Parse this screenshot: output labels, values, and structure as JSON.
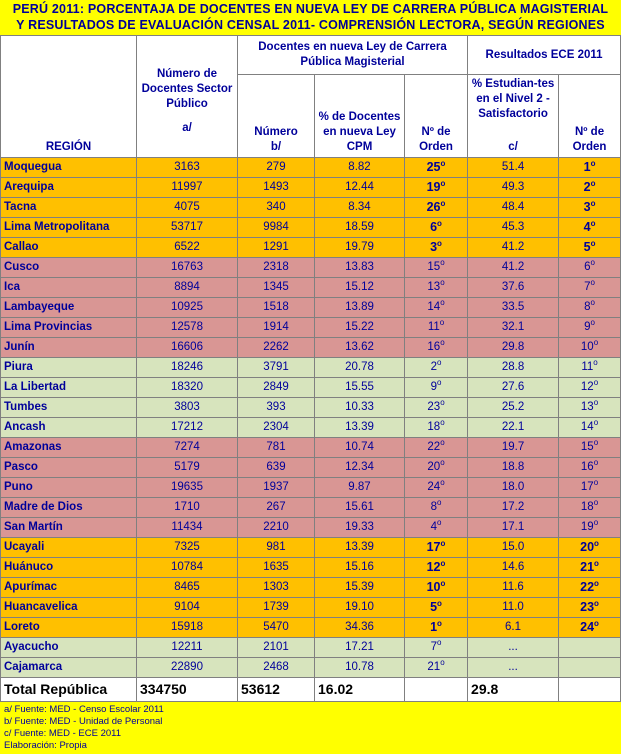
{
  "title": {
    "line1": "PERÚ 2011: PORCENTAJA DE DOCENTES EN NUEVA LEY DE CARRERA PÚBLICA MAGISTERIAL",
    "line2": "Y RESULTADOS DE EVALUACIÓN CENSAL 2011- COMPRENSIÓN LECTORA, SEGÚN REGIONES"
  },
  "headers": {
    "region": "REGIÓN",
    "num_docentes": "Número de Docentes Sector Público",
    "num_docentes_note": "a/",
    "group_clpm": "Docentes en nueva Ley de Carrera Pública Magisterial",
    "numero": "Número",
    "numero_note": "b/",
    "pct_docentes": "% de Docentes en nueva Ley CPM",
    "orden1": "Nº de Orden",
    "group_ece": "Resultados ECE 2011",
    "pct_estudiantes": "% Estudian-tes en el Nivel 2 - Satisfactorio",
    "pct_estudiantes_note": "c/",
    "orden2": "Nº de Orden"
  },
  "rows": [
    {
      "region": "Moquegua",
      "docentes": "3163",
      "numero": "279",
      "pct": "8.82",
      "orden1": "25",
      "orden1_bold": true,
      "pct_est": "51.4",
      "orden2": "1",
      "orden2_bold": true,
      "band": "orange"
    },
    {
      "region": "Arequipa",
      "docentes": "11997",
      "numero": "1493",
      "pct": "12.44",
      "orden1": "19",
      "orden1_bold": true,
      "pct_est": "49.3",
      "orden2": "2",
      "orden2_bold": true,
      "band": "orange"
    },
    {
      "region": "Tacna",
      "docentes": "4075",
      "numero": "340",
      "pct": "8.34",
      "orden1": "26",
      "orden1_bold": true,
      "pct_est": "48.4",
      "orden2": "3",
      "orden2_bold": true,
      "band": "orange"
    },
    {
      "region": "Lima Metropolitana",
      "docentes": "53717",
      "numero": "9984",
      "pct": "18.59",
      "orden1": "6",
      "orden1_bold": true,
      "pct_est": "45.3",
      "orden2": "4",
      "orden2_bold": true,
      "band": "orange"
    },
    {
      "region": "Callao",
      "docentes": "6522",
      "numero": "1291",
      "pct": "19.79",
      "orden1": "3",
      "orden1_bold": true,
      "pct_est": "41.2",
      "orden2": "5",
      "orden2_bold": true,
      "band": "orange"
    },
    {
      "region": "Cusco",
      "docentes": "16763",
      "numero": "2318",
      "pct": "13.83",
      "orden1": "15",
      "orden1_bold": false,
      "pct_est": "41.2",
      "orden2": "6",
      "orden2_bold": false,
      "band": "pink"
    },
    {
      "region": "Ica",
      "docentes": "8894",
      "numero": "1345",
      "pct": "15.12",
      "orden1": "13",
      "orden1_bold": false,
      "pct_est": "37.6",
      "orden2": "7",
      "orden2_bold": false,
      "band": "pink"
    },
    {
      "region": "Lambayeque",
      "docentes": "10925",
      "numero": "1518",
      "pct": "13.89",
      "orden1": "14",
      "orden1_bold": false,
      "pct_est": "33.5",
      "orden2": "8",
      "orden2_bold": false,
      "band": "pink"
    },
    {
      "region": "Lima Provincias",
      "docentes": "12578",
      "numero": "1914",
      "pct": "15.22",
      "orden1": "11",
      "orden1_bold": false,
      "pct_est": "32.1",
      "orden2": "9",
      "orden2_bold": false,
      "band": "pink"
    },
    {
      "region": "Junín",
      "docentes": "16606",
      "numero": "2262",
      "pct": "13.62",
      "orden1": "16",
      "orden1_bold": false,
      "pct_est": "29.8",
      "orden2": "10",
      "orden2_bold": false,
      "band": "pink"
    },
    {
      "region": "Piura",
      "docentes": "18246",
      "numero": "3791",
      "pct": "20.78",
      "orden1": "2",
      "orden1_bold": false,
      "pct_est": "28.8",
      "orden2": "11",
      "orden2_bold": false,
      "band": "green"
    },
    {
      "region": "La Libertad",
      "docentes": "18320",
      "numero": "2849",
      "pct": "15.55",
      "orden1": "9",
      "orden1_bold": false,
      "pct_est": "27.6",
      "orden2": "12",
      "orden2_bold": false,
      "band": "green"
    },
    {
      "region": "Tumbes",
      "docentes": "3803",
      "numero": "393",
      "pct": "10.33",
      "orden1": "23",
      "orden1_bold": false,
      "pct_est": "25.2",
      "orden2": "13",
      "orden2_bold": false,
      "band": "green"
    },
    {
      "region": "Ancash",
      "docentes": "17212",
      "numero": "2304",
      "pct": "13.39",
      "orden1": "18",
      "orden1_bold": false,
      "pct_est": "22.1",
      "orden2": "14",
      "orden2_bold": false,
      "band": "green"
    },
    {
      "region": "Amazonas",
      "docentes": "7274",
      "numero": "781",
      "pct": "10.74",
      "orden1": "22",
      "orden1_bold": false,
      "pct_est": "19.7",
      "orden2": "15",
      "orden2_bold": false,
      "band": "pink"
    },
    {
      "region": "Pasco",
      "docentes": "5179",
      "numero": "639",
      "pct": "12.34",
      "orden1": "20",
      "orden1_bold": false,
      "pct_est": "18.8",
      "orden2": "16",
      "orden2_bold": false,
      "band": "pink"
    },
    {
      "region": "Puno",
      "docentes": "19635",
      "numero": "1937",
      "pct": "9.87",
      "orden1": "24",
      "orden1_bold": false,
      "pct_est": "18.0",
      "orden2": "17",
      "orden2_bold": false,
      "band": "pink"
    },
    {
      "region": "Madre de Dios",
      "docentes": "1710",
      "numero": "267",
      "pct": "15.61",
      "orden1": "8",
      "orden1_bold": false,
      "pct_est": "17.2",
      "orden2": "18",
      "orden2_bold": false,
      "band": "pink"
    },
    {
      "region": "San Martín",
      "docentes": "11434",
      "numero": "2210",
      "pct": "19.33",
      "orden1": "4",
      "orden1_bold": false,
      "pct_est": "17.1",
      "orden2": "19",
      "orden2_bold": false,
      "band": "pink"
    },
    {
      "region": "Ucayali",
      "docentes": "7325",
      "numero": "981",
      "pct": "13.39",
      "orden1": "17",
      "orden1_bold": true,
      "pct_est": "15.0",
      "orden2": "20",
      "orden2_bold": true,
      "band": "orange"
    },
    {
      "region": "Huánuco",
      "docentes": "10784",
      "numero": "1635",
      "pct": "15.16",
      "orden1": "12",
      "orden1_bold": true,
      "pct_est": "14.6",
      "orden2": "21",
      "orden2_bold": true,
      "band": "orange"
    },
    {
      "region": "Apurímac",
      "docentes": "8465",
      "numero": "1303",
      "pct": "15.39",
      "orden1": "10",
      "orden1_bold": true,
      "pct_est": "11.6",
      "orden2": "22",
      "orden2_bold": true,
      "band": "orange"
    },
    {
      "region": "Huancavelica",
      "docentes": "9104",
      "numero": "1739",
      "pct": "19.10",
      "orden1": "5",
      "orden1_bold": true,
      "pct_est": "11.0",
      "orden2": "23",
      "orden2_bold": true,
      "band": "orange"
    },
    {
      "region": "Loreto",
      "docentes": "15918",
      "numero": "5470",
      "pct": "34.36",
      "orden1": "1",
      "orden1_bold": true,
      "pct_est": "6.1",
      "orden2": "24",
      "orden2_bold": true,
      "band": "orange"
    },
    {
      "region": "Ayacucho",
      "docentes": "12211",
      "numero": "2101",
      "pct": "17.21",
      "orden1": "7",
      "orden1_bold": false,
      "pct_est": "...",
      "orden2": "",
      "orden2_bold": false,
      "band": "green"
    },
    {
      "region": "Cajamarca",
      "docentes": "22890",
      "numero": "2468",
      "pct": "10.78",
      "orden1": "21",
      "orden1_bold": false,
      "pct_est": "...",
      "orden2": "",
      "orden2_bold": false,
      "band": "green"
    }
  ],
  "total": {
    "region": "Total República",
    "docentes": "334750",
    "numero": "53612",
    "pct": "16.02",
    "orden1": "",
    "pct_est": "29.8",
    "orden2": ""
  },
  "ordinal_mark": "o",
  "notes": [
    "a/ Fuente: MED - Censo Escolar 2011",
    "b/ Fuente: MED - Unidad de Personal",
    "c/ Fuente: MED - ECE 2011",
    "Elaboración: Propia"
  ],
  "colors": {
    "orange": "#ffc000",
    "pink": "#d99694",
    "green": "#d7e4bd",
    "header": "#ffffff",
    "text": "#00009a",
    "background": "#ffff00"
  }
}
